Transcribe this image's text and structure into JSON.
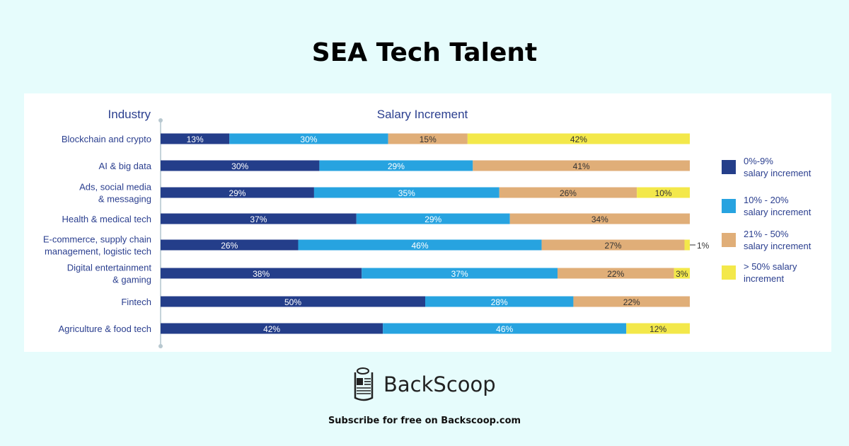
{
  "title": "SEA Tech Talent",
  "chart_data": {
    "type": "bar",
    "orientation": "horizontal",
    "stacked": true,
    "column_headers": {
      "left": "Industry",
      "right": "Salary Increment"
    },
    "categories": [
      "Blockchain and crypto",
      "AI & big data",
      "Ads, social media\n& messaging",
      "Health & medical tech",
      "E-commerce, supply chain\nmanagement, logistic tech",
      "Digital entertainment\n& gaming",
      "Fintech",
      "Agriculture & food tech"
    ],
    "series": [
      {
        "name": "0%-9% salary increment",
        "legend_lines": [
          "0%-9%",
          "salary increment"
        ],
        "color": "#243e8a",
        "values": [
          13,
          30,
          29,
          37,
          26,
          38,
          50,
          42
        ]
      },
      {
        "name": "10% - 20% salary increment",
        "legend_lines": [
          "10% - 20%",
          "salary increment"
        ],
        "color": "#27a3e0",
        "values": [
          30,
          29,
          35,
          29,
          46,
          37,
          28,
          46
        ]
      },
      {
        "name": "21% - 50% salary increment",
        "legend_lines": [
          "21% - 50%",
          "salary increment"
        ],
        "color": "#e0ae78",
        "values": [
          15,
          41,
          26,
          34,
          27,
          22,
          22,
          0
        ]
      },
      {
        "name": "> 50% salary increment",
        "legend_lines": [
          "> 50% salary",
          "increment"
        ],
        "color": "#f3e84a",
        "values": [
          42,
          0,
          10,
          0,
          1,
          3,
          0,
          12
        ]
      }
    ],
    "xlim": [
      0,
      100
    ],
    "legend_position": "right",
    "grid": false
  },
  "brand": {
    "name": "BackScoop",
    "tagline": "Subscribe for free on Backscoop.com"
  }
}
